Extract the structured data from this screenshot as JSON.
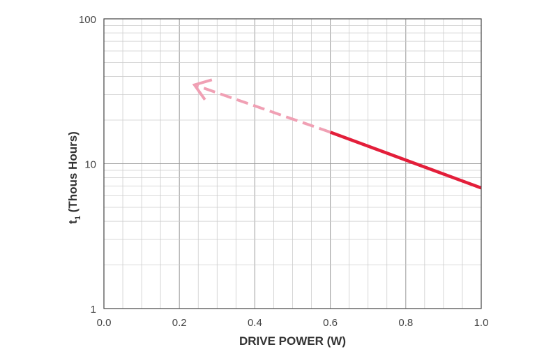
{
  "chart_data": {
    "type": "line",
    "xlabel": "DRIVE POWER (W)",
    "ylabel": "t",
    "ylabel_subscript": "1",
    "ylabel_suffix": " (Thous Hours)",
    "xlim": [
      0.0,
      1.0
    ],
    "ylim": [
      1,
      100
    ],
    "yscale": "log",
    "grid": true,
    "x_ticks": [
      "0.0",
      "0.2",
      "0.4",
      "0.6",
      "0.8",
      "1.0"
    ],
    "y_ticks": [
      "1",
      "10",
      "100"
    ],
    "series": [
      {
        "style": "solid",
        "color": "#e31e3a",
        "x": [
          0.6,
          1.0
        ],
        "y": [
          16.5,
          6.8
        ]
      },
      {
        "style": "dashed-arrow",
        "color": "#f0a0b4",
        "x": [
          0.6,
          0.24
        ],
        "y": [
          16.5,
          35
        ]
      }
    ]
  }
}
